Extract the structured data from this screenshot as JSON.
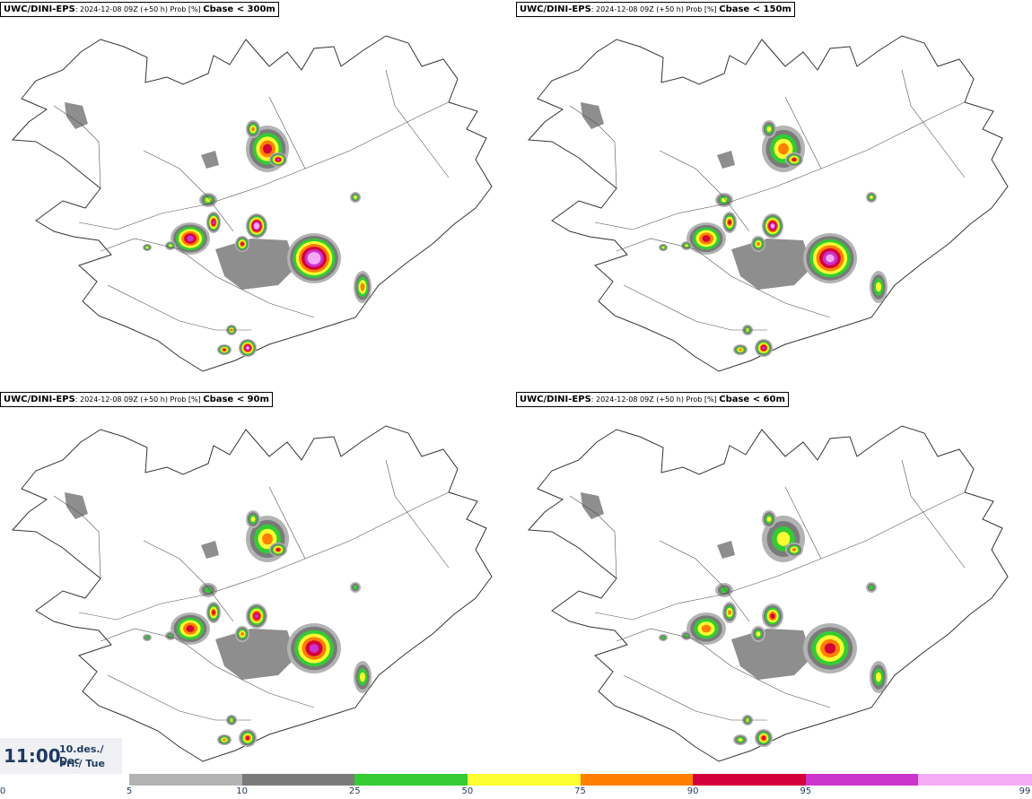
{
  "panels": [
    {
      "model": "UWC/DINI-EPS",
      "info": "2024-12-08 09Z (+50 h) Prob [%]",
      "label": "Cbase < 300m",
      "scale": 1.0
    },
    {
      "model": "UWC/DINI-EPS",
      "info": "2024-12-08 09Z (+50 h) Prob [%]",
      "label": "Cbase < 150m",
      "scale": 0.85
    },
    {
      "model": "UWC/DINI-EPS",
      "info": "2024-12-08 09Z (+50 h) Prob [%]",
      "label": "Cbase < 90m",
      "scale": 0.75
    },
    {
      "model": "UWC/DINI-EPS",
      "info": "2024-12-08 09Z (+50 h) Prob [%]",
      "label": "Cbase < 60m",
      "scale": 0.65
    }
  ],
  "valid_time": {
    "time": "11:00",
    "date_line1": "10.des./ Dec",
    "date_line2": "Þri./ Tue"
  },
  "colorbar": {
    "start_label": "0",
    "ticks": [
      "5",
      "10",
      "25",
      "50",
      "75",
      "90",
      "95",
      "99"
    ],
    "colors": [
      "#b3b3b3",
      "#7a7a7a",
      "#33cc33",
      "#ffff33",
      "#ff7f00",
      "#d4003a",
      "#cc33cc",
      "#f5aaf5"
    ]
  }
}
